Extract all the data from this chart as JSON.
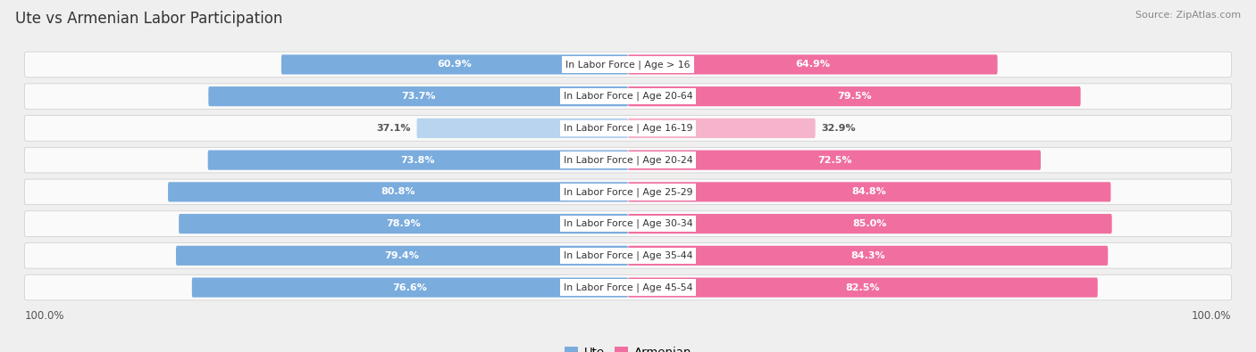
{
  "title": "Ute vs Armenian Labor Participation",
  "source": "Source: ZipAtlas.com",
  "categories": [
    "In Labor Force | Age > 16",
    "In Labor Force | Age 20-64",
    "In Labor Force | Age 16-19",
    "In Labor Force | Age 20-24",
    "In Labor Force | Age 25-29",
    "In Labor Force | Age 30-34",
    "In Labor Force | Age 35-44",
    "In Labor Force | Age 45-54"
  ],
  "ute_values": [
    60.9,
    73.7,
    37.1,
    73.8,
    80.8,
    78.9,
    79.4,
    76.6
  ],
  "armenian_values": [
    64.9,
    79.5,
    32.9,
    72.5,
    84.8,
    85.0,
    84.3,
    82.5
  ],
  "ute_color_normal": "#7aacde",
  "ute_color_light": "#b8d4ee",
  "armenian_color_normal": "#f06fa0",
  "armenian_color_light": "#f5b3cc",
  "light_rows": [
    2
  ],
  "bg_color": "#efefef",
  "row_bg": "#fafafa",
  "label_color_white": "#ffffff",
  "label_color_dark": "#555555",
  "bar_height": 0.62,
  "max_val": 100,
  "x_tick_label": "100.0%"
}
